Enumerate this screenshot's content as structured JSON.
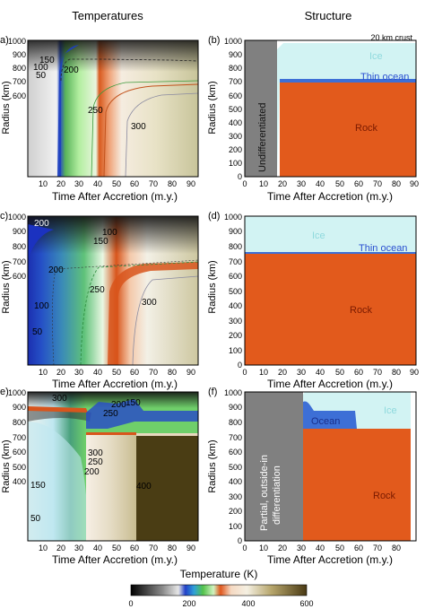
{
  "columns": {
    "left": "Temperatures",
    "right": "Structure"
  },
  "axes": {
    "x_label": "Time After Accretion (m.y.)",
    "y_label": "Radius (km)"
  },
  "panels": [
    {
      "id": "a",
      "label": "a)",
      "x_ticks": [
        "10",
        "20",
        "30",
        "40",
        "50",
        "60",
        "70",
        "80",
        "90"
      ],
      "y_ticks": [
        "0",
        "100",
        "200",
        "300",
        "400",
        "500",
        "600",
        "700",
        "800",
        "900",
        "1000"
      ],
      "contours": [
        "150",
        "100",
        "50",
        "200",
        "250",
        "300"
      ]
    },
    {
      "id": "b",
      "label": "(b)",
      "x_ticks": [
        "0",
        "10",
        "20",
        "30",
        "40",
        "50",
        "60",
        "70",
        "80",
        "90"
      ],
      "y_ticks": [
        "0",
        "100",
        "200",
        "300",
        "400",
        "500",
        "600",
        "700",
        "800",
        "900",
        "1000"
      ],
      "regions": {
        "crust": "20 km crust",
        "ice": "Ice",
        "ocean": "Thin ocean",
        "rock": "Rock",
        "undiff": "Undifferentiated"
      }
    },
    {
      "id": "c",
      "label": "c)",
      "x_ticks": [
        "10",
        "20",
        "30",
        "40",
        "50",
        "60",
        "70",
        "80",
        "90"
      ],
      "y_ticks": [
        "0",
        "100",
        "200",
        "300",
        "400",
        "500",
        "600",
        "700",
        "800",
        "900",
        "1000"
      ],
      "contours": [
        "200",
        "100",
        "150",
        "200",
        "250",
        "300",
        "100",
        "50"
      ]
    },
    {
      "id": "d",
      "label": "(d)",
      "x_ticks": [
        "0",
        "10",
        "20",
        "30",
        "40",
        "50",
        "60",
        "70",
        "80",
        "90"
      ],
      "y_ticks": [
        "0",
        "100",
        "200",
        "300",
        "400",
        "500",
        "600",
        "700",
        "800",
        "900",
        "1000"
      ],
      "regions": {
        "ice": "Ice",
        "ocean": "Thin ocean",
        "rock": "Rock"
      }
    },
    {
      "id": "e",
      "label": "e)",
      "x_ticks": [
        "10",
        "20",
        "30",
        "40",
        "50",
        "60",
        "70",
        "80",
        "90"
      ],
      "y_ticks": [
        "0",
        "100",
        "200",
        "300",
        "400",
        "500",
        "600",
        "700",
        "800",
        "900",
        "1000"
      ],
      "contours": [
        "300",
        "200",
        "150",
        "250",
        "300",
        "250",
        "200",
        "400",
        "150",
        "50"
      ]
    },
    {
      "id": "f",
      "label": "(f)",
      "x_ticks": [
        "0",
        "10",
        "20",
        "30",
        "40",
        "50",
        "60",
        "70",
        "80"
      ],
      "y_ticks": [
        "0",
        "100",
        "200",
        "300",
        "400",
        "500",
        "600",
        "700",
        "800",
        "900",
        "1000"
      ],
      "regions": {
        "ice": "Ice",
        "ocean": "Ocean",
        "rock": "Rock",
        "undiff_line1": "Partial, outside-in",
        "undiff_line2": "differentiation"
      }
    }
  ],
  "colorbar": {
    "title": "Temperature (K)",
    "ticks": [
      "0",
      "200",
      "400",
      "600"
    ],
    "min": 0,
    "max": 600
  },
  "colors": {
    "ice": "#d2f3f3",
    "ocean": "#3d6fd6",
    "rock": "#e25a1c",
    "undiff": "#808080"
  }
}
